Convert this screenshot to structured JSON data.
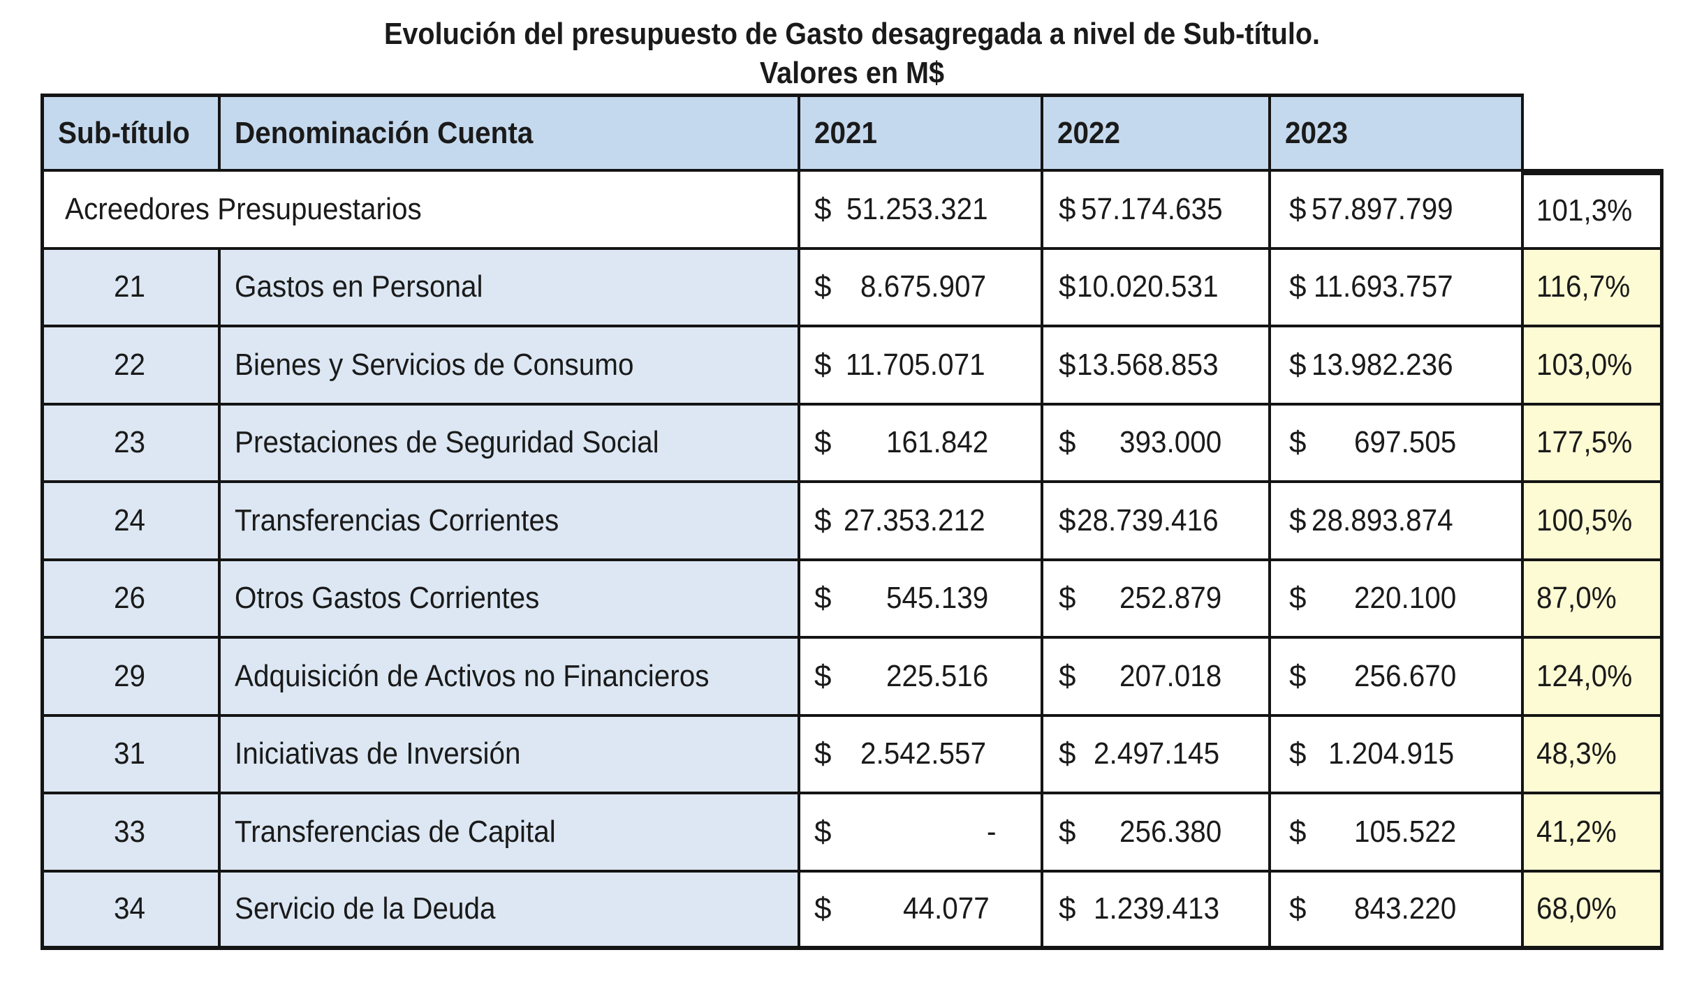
{
  "title": {
    "line1": "Evolución del presupuesto de Gasto desagregada a nivel de Sub-título.",
    "line2": "Valores en M$"
  },
  "table": {
    "headers": [
      "Sub-título",
      "Denominación Cuenta",
      "2021",
      "2022",
      "2023"
    ],
    "currency_symbol": "$",
    "total_row": {
      "label": "Acreedores Presupuestarios",
      "v2021": "51.253.321",
      "v2022": "57.174.635",
      "v2023": "57.897.799",
      "pct": "101,3%"
    },
    "rows": [
      {
        "sub": "21",
        "denom": "Gastos en Personal",
        "v2021": "8.675.907",
        "v2022": "10.020.531",
        "v2023": "11.693.757",
        "pct": "116,7%"
      },
      {
        "sub": "22",
        "denom": "Bienes y Servicios de Consumo",
        "v2021": "11.705.071",
        "v2022": "13.568.853",
        "v2023": "13.982.236",
        "pct": "103,0%"
      },
      {
        "sub": "23",
        "denom": "Prestaciones de Seguridad Social",
        "v2021": "161.842",
        "v2022": "393.000",
        "v2023": "697.505",
        "pct": "177,5%"
      },
      {
        "sub": "24",
        "denom": "Transferencias Corrientes",
        "v2021": "27.353.212",
        "v2022": "28.739.416",
        "v2023": "28.893.874",
        "pct": "100,5%"
      },
      {
        "sub": "26",
        "denom": "Otros Gastos Corrientes",
        "v2021": "545.139",
        "v2022": "252.879",
        "v2023": "220.100",
        "pct": "87,0%"
      },
      {
        "sub": "29",
        "denom": "Adquisición de Activos no Financieros",
        "v2021": "225.516",
        "v2022": "207.018",
        "v2023": "256.670",
        "pct": "124,0%"
      },
      {
        "sub": "31",
        "denom": "Iniciativas de Inversión",
        "v2021": "2.542.557",
        "v2022": "2.497.145",
        "v2023": "1.204.915",
        "pct": "48,3%"
      },
      {
        "sub": "33",
        "denom": "Transferencias de Capital",
        "v2021": "-",
        "v2022": "256.380",
        "v2023": "105.522",
        "pct": "41,2%"
      },
      {
        "sub": "34",
        "denom": "Servicio de la Deuda",
        "v2021": "44.077",
        "v2022": "1.239.413",
        "v2023": "843.220",
        "pct": "68,0%"
      }
    ]
  },
  "colors": {
    "header_bg": "#c5d9ee",
    "label_bg": "#dce7f3",
    "pct_bg": "#fdfbd4",
    "border": "#141414"
  }
}
